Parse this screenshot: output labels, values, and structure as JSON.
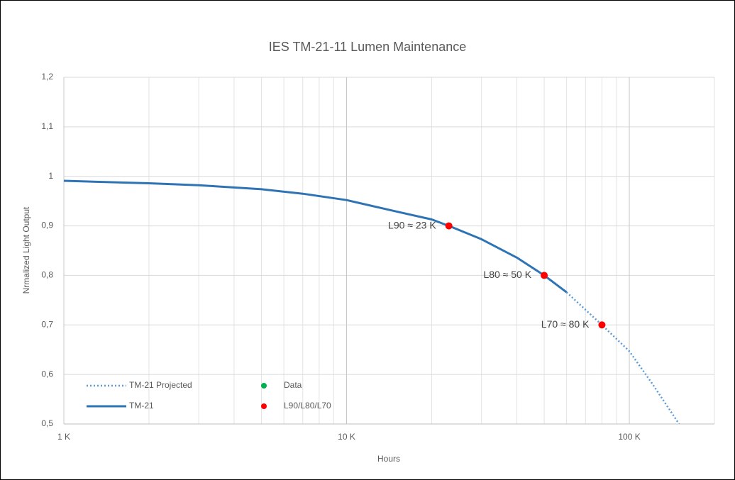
{
  "chart_data": {
    "type": "line",
    "title": "IES TM-21-11 Lumen Maintenance",
    "x_label": "Hours",
    "y_label": "Nrmalized Light Output",
    "x_scale": "log",
    "grid": true,
    "xlim": [
      1000,
      200000
    ],
    "xticks": [
      {
        "value": 1000,
        "label": "1 K"
      },
      {
        "value": 10000,
        "label": "10 K"
      },
      {
        "value": 100000,
        "label": "100 K"
      }
    ],
    "xminorticks": [
      2000,
      3000,
      4000,
      5000,
      6000,
      7000,
      8000,
      9000,
      20000,
      30000,
      40000,
      50000,
      60000,
      70000,
      80000,
      90000,
      200000
    ],
    "ylim": [
      0.5,
      1.2
    ],
    "yticks": [
      {
        "value": 0.5,
        "label": "0,5"
      },
      {
        "value": 0.6,
        "label": "0,6"
      },
      {
        "value": 0.7,
        "label": "0,7"
      },
      {
        "value": 0.8,
        "label": "0,8"
      },
      {
        "value": 0.9,
        "label": "0,9"
      },
      1,
      {
        "value": 1.1,
        "label": "1,1"
      },
      {
        "value": 1.2,
        "label": "1,2"
      }
    ],
    "series": [
      {
        "name": "TM-21 Projected",
        "color": "#5b9bd5",
        "style": "dotted",
        "x": [
          60000,
          80000,
          100000,
          120000,
          150000
        ],
        "values": [
          0.766,
          0.7,
          0.647,
          0.583,
          0.5
        ]
      },
      {
        "name": "Data",
        "color": "#00b050",
        "style": "marker",
        "x": [],
        "values": []
      },
      {
        "name": "TM-21",
        "color": "#2e74b5",
        "style": "solid",
        "x": [
          1000,
          2000,
          3000,
          5000,
          7000,
          10000,
          15000,
          20000,
          23000,
          30000,
          40000,
          50000,
          60000
        ],
        "values": [
          0.991,
          0.986,
          0.982,
          0.974,
          0.965,
          0.952,
          0.929,
          0.913,
          0.9,
          0.873,
          0.836,
          0.8,
          0.766
        ]
      },
      {
        "name": "L90/L80/L70",
        "color": "#ff0000",
        "style": "marker",
        "x": [
          23000,
          50000,
          80000
        ],
        "values": [
          0.9,
          0.8,
          0.7
        ],
        "labels": [
          "L90 ≈ 23 K",
          "L80 ≈ 50 K",
          "L70 ≈ 80 K"
        ]
      }
    ]
  }
}
